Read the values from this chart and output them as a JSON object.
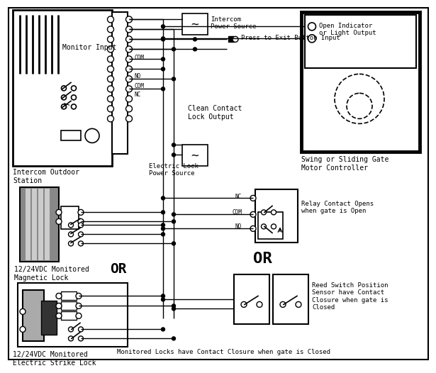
{
  "bg_color": "#ffffff",
  "labels": {
    "monitor_input": "Monitor Input",
    "intercom_outdoor": "Intercom Outdoor\nStation",
    "intercom_ps": "Intercom\nPower Source",
    "press_exit": "Press to Exit Button Input",
    "clean_contact": "Clean Contact\nLock Output",
    "electric_lock_ps": "Electric Lock\nPower Source",
    "mag_lock": "12/24VDC Monitored\nMagnetic Lock",
    "or1": "OR",
    "electric_strike": "12/24VDC Monitored\nElectric Strike Lock",
    "swing_gate": "Swing or Sliding Gate\nMotor Controller",
    "open_indicator": "Open Indicator\nor Light Output",
    "relay_contact": "Relay Contact Opens\nwhen gate is Open",
    "or2": "OR",
    "reed_switch": "Reed Switch Position\nSensor have Contact\nClosure when gate is\nClosed",
    "monitored_locks": "Monitored Locks have Contact Closure when gate is Closed",
    "com": "COM",
    "no": "NO",
    "nc": "NC"
  }
}
